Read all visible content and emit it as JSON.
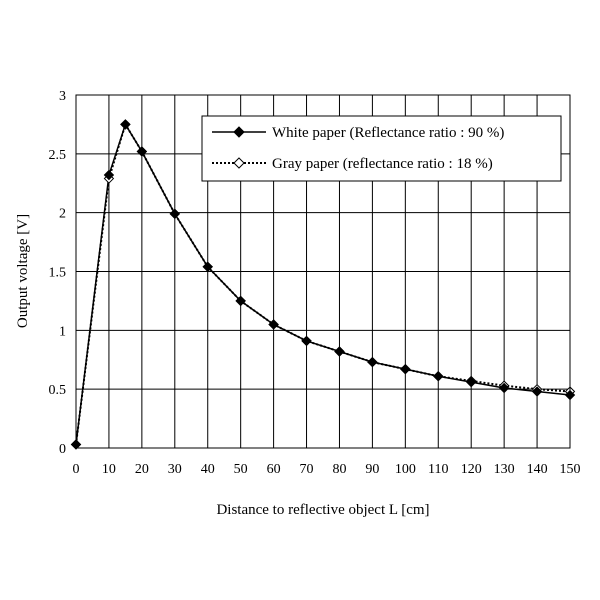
{
  "chart_data": {
    "type": "line",
    "title": "",
    "xlabel": "Distance to reflective object L [cm]",
    "ylabel": "Output voltage [V]",
    "xlim": [
      0,
      150
    ],
    "ylim": [
      0,
      3
    ],
    "grid": true,
    "legend_position": "top-right",
    "x_ticks": [
      "0",
      "10",
      "20",
      "30",
      "40",
      "50",
      "60",
      "70",
      "80",
      "90",
      "100",
      "110",
      "120",
      "130",
      "140",
      "150"
    ],
    "y_ticks": [
      "0",
      "0.5",
      "1",
      "1.5",
      "2",
      "2.5",
      "3"
    ],
    "series": [
      {
        "name": "White paper (Reflectance ratio : 90 %)",
        "marker": "filled-diamond",
        "line": "solid",
        "x": [
          0,
          10,
          15,
          20,
          30,
          40,
          50,
          60,
          70,
          80,
          90,
          100,
          110,
          120,
          130,
          140,
          150
        ],
        "y": [
          0.03,
          2.32,
          2.75,
          2.52,
          1.99,
          1.54,
          1.25,
          1.05,
          0.91,
          0.82,
          0.73,
          0.67,
          0.61,
          0.56,
          0.51,
          0.48,
          0.45
        ]
      },
      {
        "name": "Gray paper (reflectance ratio : 18 %)",
        "marker": "open-diamond",
        "line": "dotted",
        "x": [
          0,
          10,
          15,
          20,
          30,
          40,
          50,
          60,
          70,
          80,
          90,
          100,
          110,
          120,
          130,
          140,
          150
        ],
        "y": [
          0.03,
          2.29,
          2.75,
          2.52,
          1.99,
          1.54,
          1.25,
          1.05,
          0.91,
          0.82,
          0.73,
          0.67,
          0.61,
          0.57,
          0.53,
          0.5,
          0.48
        ]
      }
    ]
  }
}
